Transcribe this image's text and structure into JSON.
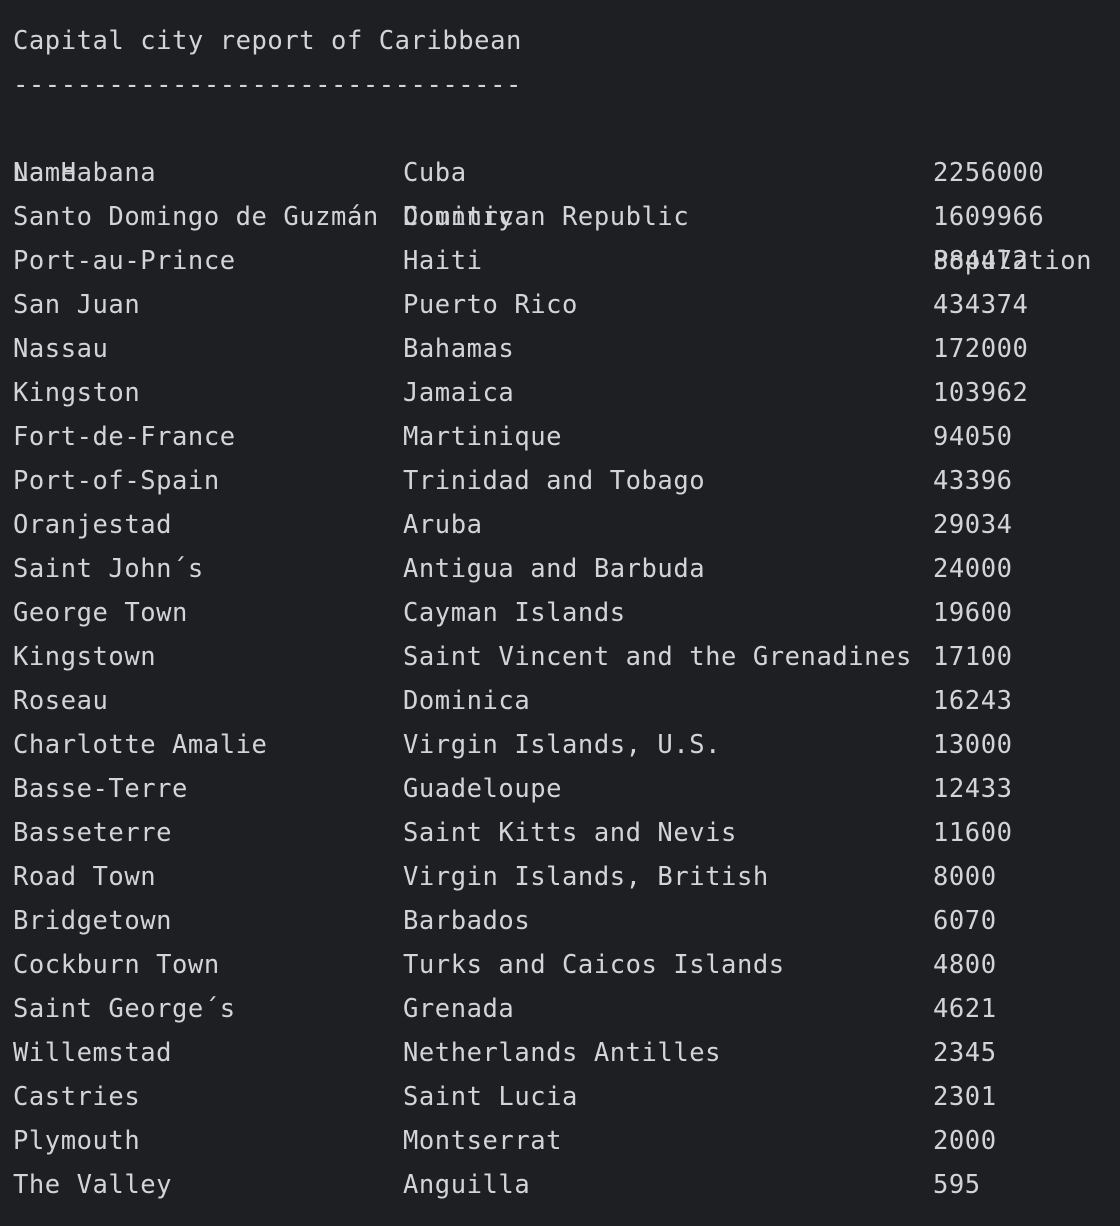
{
  "report": {
    "title": "Capital city report of Caribbean",
    "separator": "--------------------------------",
    "headers": {
      "name": "Name",
      "country": "Country",
      "population": "Population"
    },
    "rows": [
      {
        "name": "La Habana",
        "country": "Cuba",
        "population": "2256000"
      },
      {
        "name": "Santo Domingo de Guzmán",
        "country": "Dominican Republic",
        "population": "1609966"
      },
      {
        "name": "Port-au-Prince",
        "country": "Haiti",
        "population": "884472"
      },
      {
        "name": "San Juan",
        "country": "Puerto Rico",
        "population": "434374"
      },
      {
        "name": "Nassau",
        "country": "Bahamas",
        "population": "172000"
      },
      {
        "name": "Kingston",
        "country": "Jamaica",
        "population": "103962"
      },
      {
        "name": "Fort-de-France",
        "country": "Martinique",
        "population": "94050"
      },
      {
        "name": "Port-of-Spain",
        "country": "Trinidad and Tobago",
        "population": "43396"
      },
      {
        "name": "Oranjestad",
        "country": "Aruba",
        "population": "29034"
      },
      {
        "name": "Saint John´s",
        "country": "Antigua and Barbuda",
        "population": "24000"
      },
      {
        "name": "George Town",
        "country": "Cayman Islands",
        "population": "19600"
      },
      {
        "name": "Kingstown",
        "country": "Saint Vincent and the Grenadines",
        "population": "17100"
      },
      {
        "name": "Roseau",
        "country": "Dominica",
        "population": "16243"
      },
      {
        "name": "Charlotte Amalie",
        "country": "Virgin Islands, U.S.",
        "population": "13000"
      },
      {
        "name": "Basse-Terre",
        "country": "Guadeloupe",
        "population": "12433"
      },
      {
        "name": "Basseterre",
        "country": "Saint Kitts and Nevis",
        "population": "11600"
      },
      {
        "name": "Road Town",
        "country": "Virgin Islands, British",
        "population": "8000"
      },
      {
        "name": "Bridgetown",
        "country": "Barbados",
        "population": "6070"
      },
      {
        "name": "Cockburn Town",
        "country": "Turks and Caicos Islands",
        "population": "4800"
      },
      {
        "name": "Saint George´s",
        "country": "Grenada",
        "population": "4621"
      },
      {
        "name": "Willemstad",
        "country": "Netherlands Antilles",
        "population": "2345"
      },
      {
        "name": "Castries",
        "country": "Saint Lucia",
        "population": "2301"
      },
      {
        "name": "Plymouth",
        "country": "Montserrat",
        "population": "2000"
      },
      {
        "name": "The Valley",
        "country": "Anguilla",
        "population": "595"
      }
    ]
  }
}
